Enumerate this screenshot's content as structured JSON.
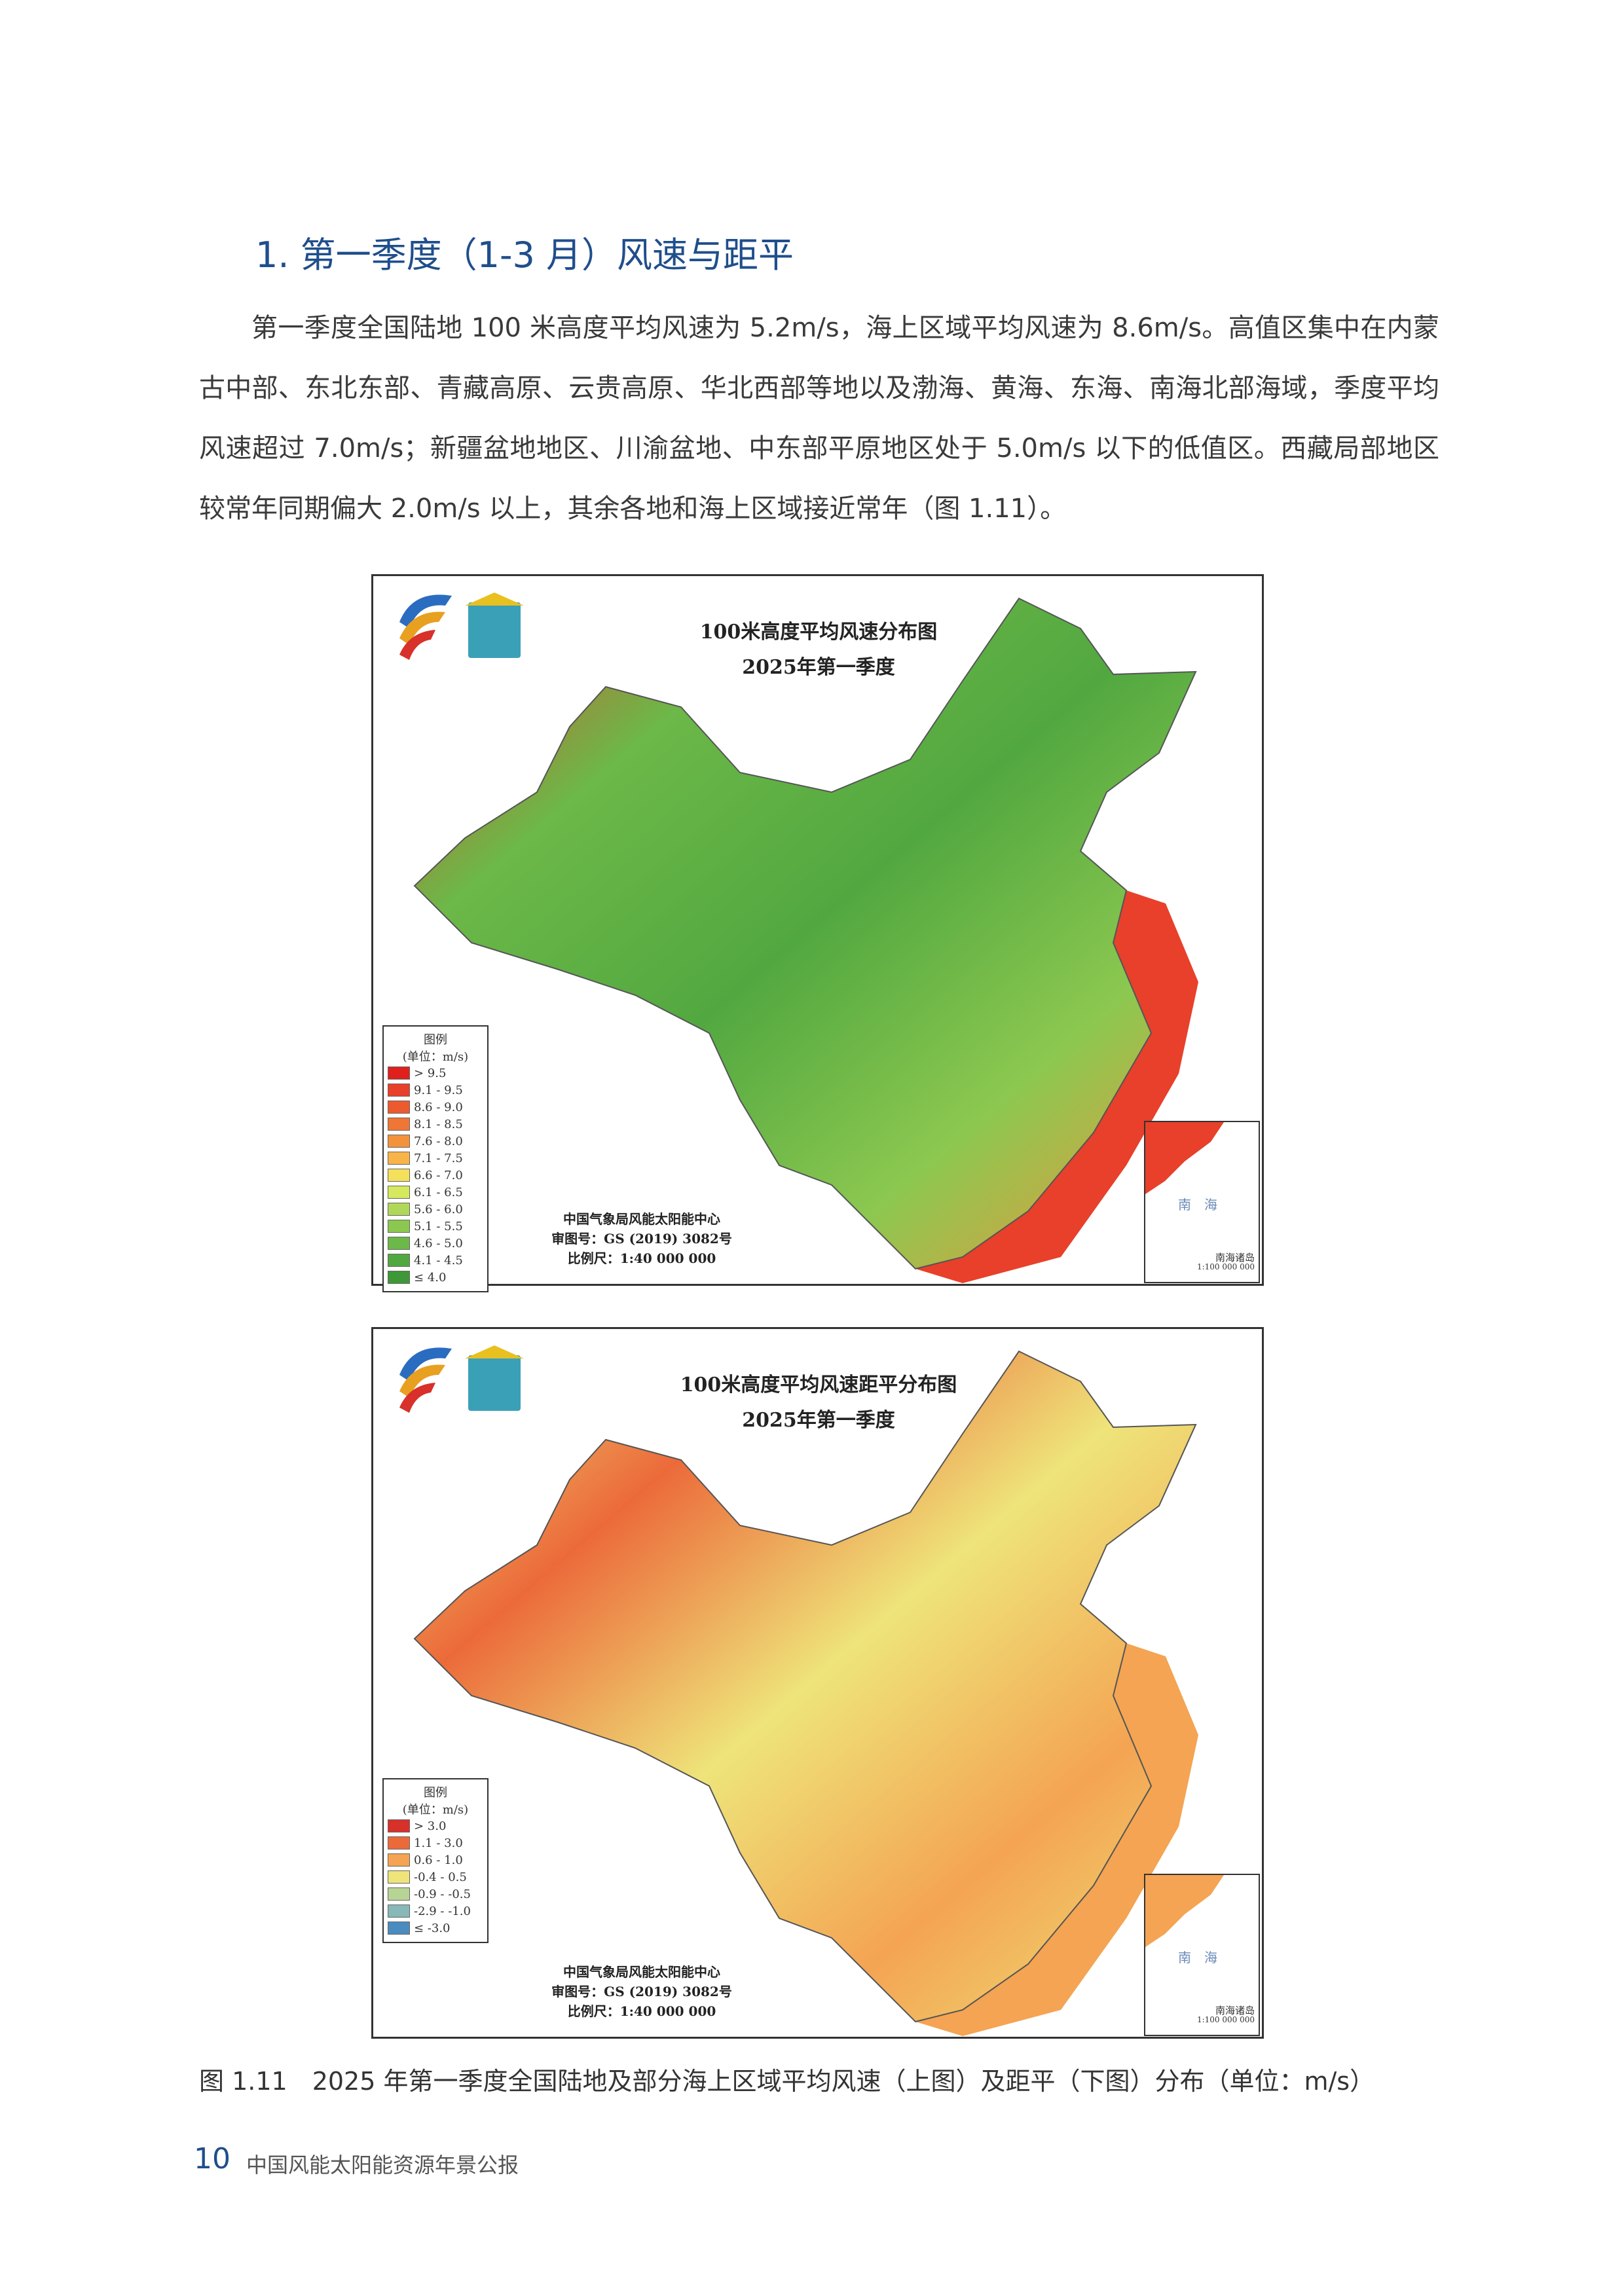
{
  "heading": "1. 第一季度（1-3 月）风速与距平",
  "paragraph": "第一季度全国陆地 100 米高度平均风速为 5.2m/s，海上区域平均风速为 8.6m/s。高值区集中在内蒙古中部、东北东部、青藏高原、云贵高原、华北西部等地以及渤海、黄海、东海、南海北部海域，季度平均风速超过 7.0m/s；新疆盆地地区、川渝盆地、中东部平原地区处于 5.0m/s 以下的低值区。西藏局部地区较常年同期偏大 2.0m/s 以上，其余各地和海上区域接近常年（图 1.11）。",
  "figures": [
    {
      "title": [
        "100米高度平均风速分布图",
        "2025年第一季度"
      ],
      "legend_title": "图例",
      "legend_unit": "(单位：m/s)",
      "legend": [
        {
          "label": "> 9.5",
          "color": "#e0201c"
        },
        {
          "label": "9.1 - 9.5",
          "color": "#e8402a"
        },
        {
          "label": "8.6 - 9.0",
          "color": "#ec5a2e"
        },
        {
          "label": "8.1 - 8.5",
          "color": "#f07636"
        },
        {
          "label": "7.6 - 8.0",
          "color": "#f4923c"
        },
        {
          "label": "7.1 - 7.5",
          "color": "#f8b448"
        },
        {
          "label": "6.6 - 7.0",
          "color": "#f4e05a"
        },
        {
          "label": "6.1 - 6.5",
          "color": "#d6e85e"
        },
        {
          "label": "5.6 - 6.0",
          "color": "#b0d858"
        },
        {
          "label": "5.1 - 5.5",
          "color": "#8cc850"
        },
        {
          "label": "4.6 - 5.0",
          "color": "#6cb848"
        },
        {
          "label": "4.1 - 4.5",
          "color": "#52a840"
        },
        {
          "label": "≤ 4.0",
          "color": "#3e9838"
        }
      ],
      "notes": [
        "中国气象局风能太阳能中心",
        "审图号：GS (2019) 3082号",
        "比例尺：1:40 000 000"
      ],
      "inset_sea": "南　海",
      "inset_label": [
        "南海诸岛",
        "1:100 000 000"
      ]
    },
    {
      "title": [
        "100米高度平均风速距平分布图",
        "2025年第一季度"
      ],
      "legend_title": "图例",
      "legend_unit": "(单位：m/s)",
      "legend": [
        {
          "label": "> 3.0",
          "color": "#d8302a"
        },
        {
          "label": "1.1 - 3.0",
          "color": "#ec6a3a"
        },
        {
          "label": "0.6 - 1.0",
          "color": "#f4a452"
        },
        {
          "label": "-0.4 - 0.5",
          "color": "#eee47a"
        },
        {
          "label": "-0.9 - -0.5",
          "color": "#b8d494"
        },
        {
          "label": "-2.9 - -1.0",
          "color": "#88b8b8"
        },
        {
          "label": "≤ -3.0",
          "color": "#4a8cc0"
        }
      ],
      "notes": [
        "中国气象局风能太阳能中心",
        "审图号：GS (2019) 3082号",
        "比例尺：1:40 000 000"
      ],
      "inset_sea": "南　海",
      "inset_label": [
        "南海诸岛",
        "1:100 000 000"
      ]
    }
  ],
  "caption": "图 1.11　2025 年第一季度全国陆地及部分海上区域平均风速（上图）及距平（下图）分布（单位：m/s）",
  "footer": {
    "page": "10",
    "title": "中国风能太阳能资源年景公报"
  }
}
